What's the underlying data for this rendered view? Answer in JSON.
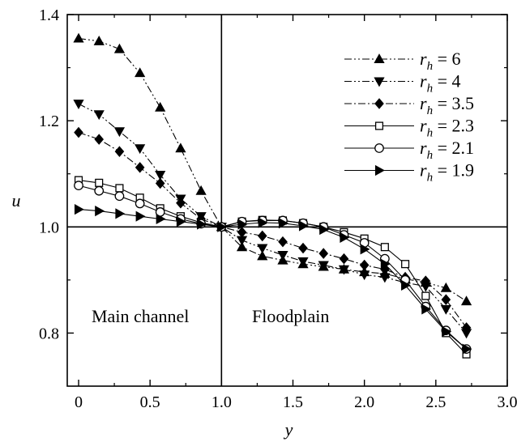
{
  "chart_data": {
    "type": "line",
    "xlabel": "y",
    "ylabel": "u",
    "xlim": [
      0,
      3.0
    ],
    "ylim": [
      0.7,
      1.4
    ],
    "xticks": [
      0,
      0.5,
      1.0,
      1.5,
      2.0,
      2.5,
      3.0
    ],
    "xtick_labels": [
      "0",
      "0.5",
      "1.0",
      "1.5",
      "2.0",
      "2.5",
      "3.0"
    ],
    "yticks": [
      0.8,
      1.0,
      1.2,
      1.4
    ],
    "ytick_labels": [
      "0.8",
      "1.0",
      "1.2",
      "1.4"
    ],
    "grid": false,
    "legend_position": "top-right",
    "reference_lines": {
      "x": 1.0,
      "y": 1.0
    },
    "region_labels": {
      "left": "Main channel",
      "right": "Floodplain"
    },
    "x": [
      0,
      0.143,
      0.286,
      0.429,
      0.571,
      0.714,
      0.857,
      1.0,
      1.143,
      1.286,
      1.429,
      1.571,
      1.714,
      1.857,
      2.0,
      2.143,
      2.286,
      2.429,
      2.571,
      2.714
    ],
    "series": [
      {
        "name": "r_h = 6",
        "legend_text": {
          "main": "r",
          "sub": "h",
          "rest": " = 6"
        },
        "marker": "triangle-up",
        "filled": true,
        "dash": "dashdotdot",
        "values": [
          1.355,
          1.35,
          1.335,
          1.29,
          1.225,
          1.148,
          1.068,
          1.0,
          0.962,
          0.945,
          0.937,
          0.93,
          0.925,
          0.92,
          0.915,
          0.912,
          0.902,
          0.895,
          0.885,
          0.86
        ]
      },
      {
        "name": "r_h = 4",
        "legend_text": {
          "main": "r",
          "sub": "h",
          "rest": " = 4"
        },
        "marker": "triangle-down",
        "filled": true,
        "dash": "dashdotdot",
        "values": [
          1.232,
          1.212,
          1.18,
          1.148,
          1.098,
          1.053,
          1.02,
          1.0,
          0.975,
          0.96,
          0.947,
          0.935,
          0.928,
          0.92,
          0.91,
          0.905,
          0.895,
          0.888,
          0.845,
          0.8
        ]
      },
      {
        "name": "r_h = 3.5",
        "legend_text": {
          "main": "r",
          "sub": "h",
          "rest": " = 3.5"
        },
        "marker": "diamond",
        "filled": true,
        "dash": "dashdot",
        "values": [
          1.178,
          1.165,
          1.142,
          1.112,
          1.082,
          1.045,
          1.015,
          1.0,
          0.99,
          0.983,
          0.972,
          0.96,
          0.95,
          0.94,
          0.928,
          0.92,
          0.905,
          0.898,
          0.863,
          0.81
        ]
      },
      {
        "name": "r_h = 2.3",
        "legend_text": {
          "main": "r",
          "sub": "h",
          "rest": " = 2.3"
        },
        "marker": "square",
        "filled": false,
        "dash": "solid",
        "values": [
          1.088,
          1.083,
          1.073,
          1.055,
          1.035,
          1.02,
          1.008,
          1.0,
          1.01,
          1.013,
          1.012,
          1.007,
          1.0,
          0.99,
          0.978,
          0.962,
          0.93,
          0.87,
          0.8,
          0.76
        ]
      },
      {
        "name": "r_h = 2.1",
        "legend_text": {
          "main": "r",
          "sub": "h",
          "rest": " = 2.1"
        },
        "marker": "circle",
        "filled": false,
        "dash": "solid",
        "values": [
          1.078,
          1.068,
          1.058,
          1.044,
          1.028,
          1.015,
          1.006,
          1.0,
          1.01,
          1.012,
          1.012,
          1.007,
          1.0,
          0.985,
          0.97,
          0.94,
          0.9,
          0.85,
          0.805,
          0.77
        ]
      },
      {
        "name": "r_h = 1.9",
        "legend_text": {
          "main": "r",
          "sub": "h",
          "rest": " = 1.9"
        },
        "marker": "triangle-right",
        "filled": true,
        "dash": "solid",
        "values": [
          1.033,
          1.03,
          1.025,
          1.02,
          1.015,
          1.01,
          1.005,
          1.0,
          1.005,
          1.008,
          1.007,
          1.002,
          0.995,
          0.98,
          0.958,
          0.93,
          0.89,
          0.845,
          0.803,
          0.77
        ]
      }
    ]
  }
}
